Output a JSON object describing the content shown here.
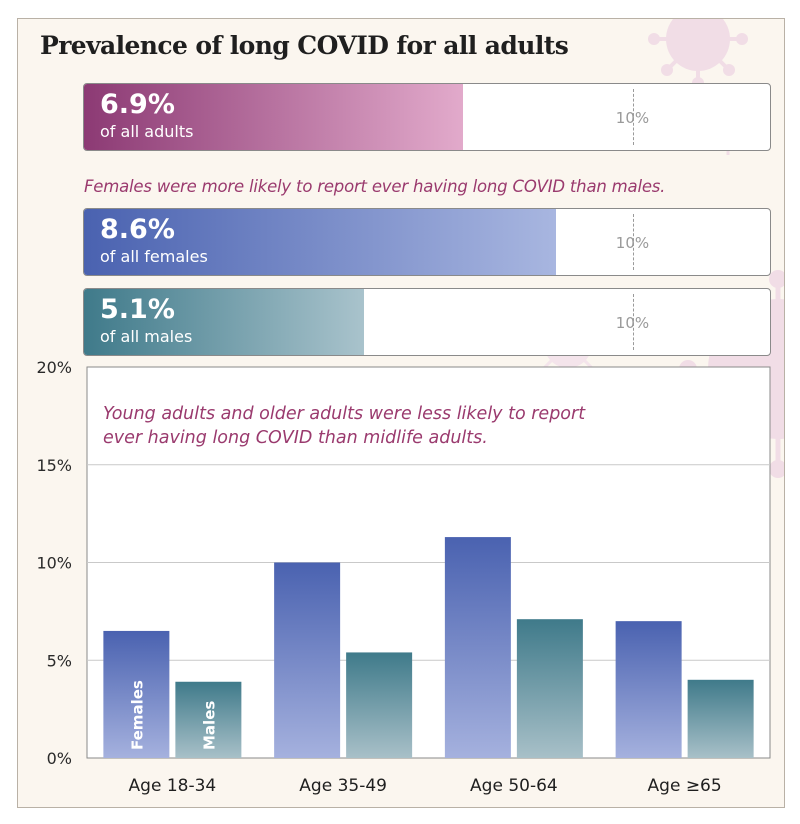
{
  "title": "Prevalence of long COVID for all adults",
  "colors": {
    "accent": "#9a3a6e",
    "all_adults": "#8c3a74",
    "females": "#4a62b0",
    "males": "#3f7a8a"
  },
  "bars": [
    {
      "pct_label": "6.9%",
      "label": "of all adults",
      "value": 6.9,
      "max": 12.5,
      "ref_label": "10%",
      "ref_value": 10,
      "group": "all"
    },
    {
      "pct_label": "8.6%",
      "label": "of all females",
      "value": 8.6,
      "max": 12.5,
      "ref_label": "10%",
      "ref_value": 10,
      "group": "fem"
    },
    {
      "pct_label": "5.1%",
      "label": "of all males",
      "value": 5.1,
      "max": 12.5,
      "ref_label": "10%",
      "ref_value": 10,
      "group": "male"
    }
  ],
  "gender_note": "Females were more likely to report ever having long COVID than males.",
  "chart_data": {
    "type": "bar",
    "title": "Young adults and older adults were less likely to report ever having long COVID than midlife adults.",
    "title_lines": [
      "Young adults and older adults were less likely to report",
      "ever having long COVID than midlife adults."
    ],
    "categories": [
      "Age 18-34",
      "Age 35-49",
      "Age 50-64",
      "Age ≥65"
    ],
    "series": [
      {
        "name": "Females",
        "values": [
          6.5,
          10.0,
          11.3,
          7.0
        ]
      },
      {
        "name": "Males",
        "values": [
          3.9,
          5.4,
          7.1,
          4.0
        ]
      }
    ],
    "ylim": [
      0,
      20
    ],
    "yticks": [
      0,
      5,
      10,
      15,
      20
    ],
    "ytick_labels": [
      "0%",
      "5%",
      "10%",
      "15%",
      "20%"
    ],
    "grid": true,
    "xlabel": "",
    "ylabel": ""
  }
}
